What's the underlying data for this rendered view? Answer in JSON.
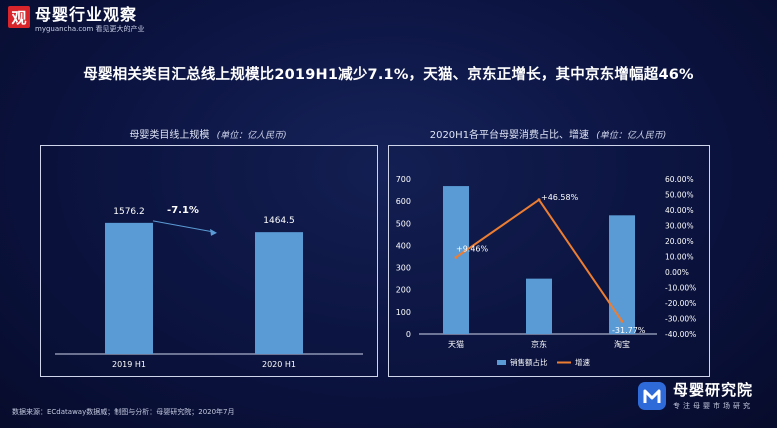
{
  "header": {
    "logo_char": "观",
    "logo_name": "母婴行业观察",
    "logo_sub": "myguancha.com 看见更大的产业"
  },
  "headline": "母婴相关类目汇总线上规模比2019H1减少7.1%，天猫、京东正增长，其中京东增幅超46%",
  "left_chart": {
    "title": "母婴类目线上规模",
    "unit": "(单位：亿人民币)",
    "change_label": "-7.1%"
  },
  "right_chart": {
    "title": "2020H1各平台母婴消费占比、增速",
    "unit": "(单位：亿人民币)"
  },
  "footer": "数据来源：ECdataway数据威；制图与分析：母婴研究院；2020年7月",
  "brand": {
    "name": "母婴研究院",
    "sub": "专注母婴市场研究"
  },
  "colors": {
    "bar": "#5b9bd5",
    "line": "#ed7d31",
    "background": "#0b1340"
  },
  "chart_data": [
    {
      "type": "bar",
      "title": "母婴类目线上规模",
      "categories": [
        "2019 H1",
        "2020 H1"
      ],
      "values": [
        1576.2,
        1464.5
      ],
      "value_labels": [
        "1576.2",
        "1464.5"
      ],
      "ylim": [
        0,
        2500
      ],
      "grid": false,
      "annotation": "-7.1%"
    },
    {
      "type": "bar",
      "title": "2020H1各平台母婴消费占比、增速",
      "categories": [
        "天猫",
        "京东",
        "淘宝"
      ],
      "series": [
        {
          "name": "销售额占比",
          "type": "bar",
          "axis": "left",
          "values": [
            668,
            250,
            536
          ]
        },
        {
          "name": "增速",
          "type": "line",
          "axis": "right",
          "values": [
            9.46,
            46.58,
            -31.77
          ],
          "labels": [
            "+9.46%",
            "+46.58%",
            "-31.77%"
          ]
        }
      ],
      "y_left": {
        "ylim": [
          0,
          700
        ],
        "ticks": [
          "0",
          "100",
          "200",
          "300",
          "400",
          "500",
          "600",
          "700"
        ]
      },
      "y_right": {
        "ylim": [
          -40,
          60
        ],
        "ticks": [
          "-40.00%",
          "-30.00%",
          "-20.00%",
          "-10.00%",
          "0.00%",
          "10.00%",
          "20.00%",
          "30.00%",
          "40.00%",
          "50.00%",
          "60.00%"
        ]
      },
      "legend": "bottom-center",
      "grid": false
    }
  ]
}
